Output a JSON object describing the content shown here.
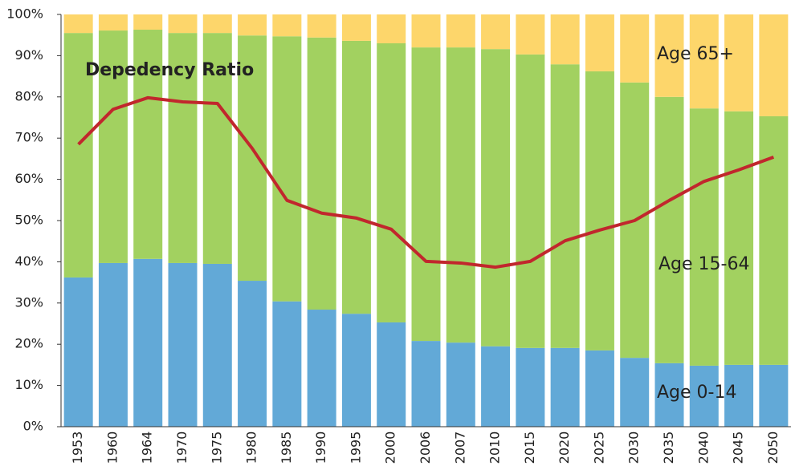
{
  "chart_data": {
    "type": "bar",
    "stacked": true,
    "title": "Depedency Ratio",
    "categories": [
      "1953",
      "1960",
      "1964",
      "1970",
      "1975",
      "1980",
      "1985",
      "1990",
      "1995",
      "2000",
      "2006",
      "2007",
      "2010",
      "2015",
      "2020",
      "2025",
      "2030",
      "2035",
      "2040",
      "2045",
      "2050"
    ],
    "series": [
      {
        "name": "Age 0-14",
        "color": "#62a9d7",
        "label_color": "#1f4e73",
        "values": [
          36.2,
          39.7,
          40.7,
          39.7,
          39.5,
          35.4,
          30.4,
          28.4,
          27.4,
          25.3,
          20.8,
          20.4,
          19.5,
          19.1,
          19.1,
          18.5,
          16.7,
          15.4,
          14.8,
          15.0,
          15.0
        ]
      },
      {
        "name": "Age 15-64",
        "color": "#a2d160",
        "label_color": "#333333",
        "values": [
          59.3,
          56.4,
          55.6,
          55.8,
          56.0,
          59.5,
          64.3,
          66.0,
          66.2,
          67.7,
          71.2,
          71.6,
          72.1,
          71.2,
          68.8,
          67.7,
          66.8,
          64.6,
          62.4,
          61.5,
          60.3
        ]
      },
      {
        "name": "Age 65+",
        "color": "#fdd66b",
        "label_color": "#b38a22",
        "values": [
          4.5,
          3.9,
          3.7,
          4.5,
          4.5,
          5.1,
          5.3,
          5.6,
          6.4,
          7.0,
          8.0,
          8.0,
          8.4,
          9.7,
          12.1,
          13.8,
          16.5,
          20.0,
          22.8,
          23.5,
          24.7
        ]
      }
    ],
    "line": {
      "color": "#c1272d",
      "values": [
        68.5,
        77.0,
        79.8,
        78.8,
        78.4,
        67.5,
        54.9,
        51.8,
        50.6,
        47.9,
        40.1,
        39.7,
        38.7,
        40.1,
        45.1,
        47.7,
        50.0,
        54.9,
        59.5,
        62.3,
        65.4
      ]
    },
    "ylim": [
      0,
      100
    ],
    "yticks": [
      {
        "value": 0,
        "label": "0%"
      },
      {
        "value": 10,
        "label": "10%"
      },
      {
        "value": 20,
        "label": "20%"
      },
      {
        "value": 30,
        "label": "30%"
      },
      {
        "value": 40,
        "label": "40%"
      },
      {
        "value": 50,
        "label": "50%"
      },
      {
        "value": 60,
        "label": "60%"
      },
      {
        "value": 70,
        "label": "70%"
      },
      {
        "value": 80,
        "label": "80%"
      },
      {
        "value": 90,
        "label": "90%"
      },
      {
        "value": 100,
        "label": "100%"
      }
    ]
  }
}
